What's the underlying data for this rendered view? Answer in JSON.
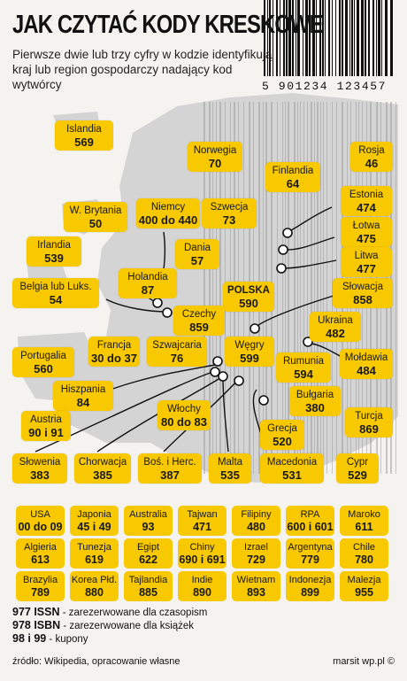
{
  "title": "JAK CZYTAĆ KODY KRESKOWE",
  "subtitle": "Pierwsze dwie lub trzy cyfry w kodzie identyfikują kraj lub region gospodarczy nadający kod wytwórcy",
  "barcode_digits": "5 901234 123457",
  "colors": {
    "badge": "#f8c800",
    "map": "#d2d2d2",
    "background": "#f4f3ef"
  },
  "map_badges": [
    {
      "name": "Islandia",
      "code": "569"
    },
    {
      "name": "Norwegia",
      "code": "70"
    },
    {
      "name": "Finlandia",
      "code": "64"
    },
    {
      "name": "Rosja",
      "code": "46"
    },
    {
      "name": "W. Brytania",
      "code": "50"
    },
    {
      "name": "Niemcy",
      "code": "400 do 440"
    },
    {
      "name": "Szwecja",
      "code": "73"
    },
    {
      "name": "Estonia",
      "code": "474"
    },
    {
      "name": "Irlandia",
      "code": "539"
    },
    {
      "name": "Dania",
      "code": "57"
    },
    {
      "name": "Łotwa",
      "code": "475"
    },
    {
      "name": "Litwa",
      "code": "477"
    },
    {
      "name": "Belgia lub Luks.",
      "code": "54"
    },
    {
      "name": "Holandia",
      "code": "87"
    },
    {
      "name": "POLSKA",
      "code": "590"
    },
    {
      "name": "Słowacja",
      "code": "858"
    },
    {
      "name": "Czechy",
      "code": "859"
    },
    {
      "name": "Ukraina",
      "code": "482"
    },
    {
      "name": "Portugalia",
      "code": "560"
    },
    {
      "name": "Francja",
      "code": "30 do 37"
    },
    {
      "name": "Szwajcaria",
      "code": "76"
    },
    {
      "name": "Węgry",
      "code": "599"
    },
    {
      "name": "Rumunia",
      "code": "594"
    },
    {
      "name": "Mołdawia",
      "code": "484"
    },
    {
      "name": "Hiszpania",
      "code": "84"
    },
    {
      "name": "Bułgaria",
      "code": "380"
    },
    {
      "name": "Austria",
      "code": "90 i 91"
    },
    {
      "name": "Włochy",
      "code": "80 do 83"
    },
    {
      "name": "Turcja",
      "code": "869"
    },
    {
      "name": "Grecja",
      "code": "520"
    },
    {
      "name": "Słowenia",
      "code": "383"
    },
    {
      "name": "Chorwacja",
      "code": "385"
    },
    {
      "name": "Boś. i Herc.",
      "code": "387"
    },
    {
      "name": "Malta",
      "code": "535"
    },
    {
      "name": "Macedonia",
      "code": "531"
    },
    {
      "name": "Cypr",
      "code": "529"
    }
  ],
  "world_badges": [
    {
      "name": "USA",
      "code": "00 do 09"
    },
    {
      "name": "Japonia",
      "code": "45 i 49"
    },
    {
      "name": "Australia",
      "code": "93"
    },
    {
      "name": "Tajwan",
      "code": "471"
    },
    {
      "name": "Filipiny",
      "code": "480"
    },
    {
      "name": "RPA",
      "code": "600 i 601"
    },
    {
      "name": "Maroko",
      "code": "611"
    },
    {
      "name": "Algieria",
      "code": "613"
    },
    {
      "name": "Tunezja",
      "code": "619"
    },
    {
      "name": "Egipt",
      "code": "622"
    },
    {
      "name": "Chiny",
      "code": "690 i 691"
    },
    {
      "name": "Izrael",
      "code": "729"
    },
    {
      "name": "Argentyna",
      "code": "779"
    },
    {
      "name": "Chile",
      "code": "780"
    },
    {
      "name": "Brazylia",
      "code": "789"
    },
    {
      "name": "Korea Płd.",
      "code": "880"
    },
    {
      "name": "Tajlandia",
      "code": "885"
    },
    {
      "name": "Indie",
      "code": "890"
    },
    {
      "name": "Wietnam",
      "code": "893"
    },
    {
      "name": "Indonezja",
      "code": "899"
    },
    {
      "name": "Malezja",
      "code": "955"
    }
  ],
  "reserved": [
    {
      "code": "977 ISSN",
      "text": " - zarezerwowane dla czasopism"
    },
    {
      "code": "978 ISBN",
      "text": " - zarezerwowane dla książek"
    },
    {
      "code": "98 i 99",
      "text": " - kupony"
    }
  ],
  "source": "źródło: Wikipedia, opracowanie własne",
  "credit": "marsit wp.pl ©"
}
